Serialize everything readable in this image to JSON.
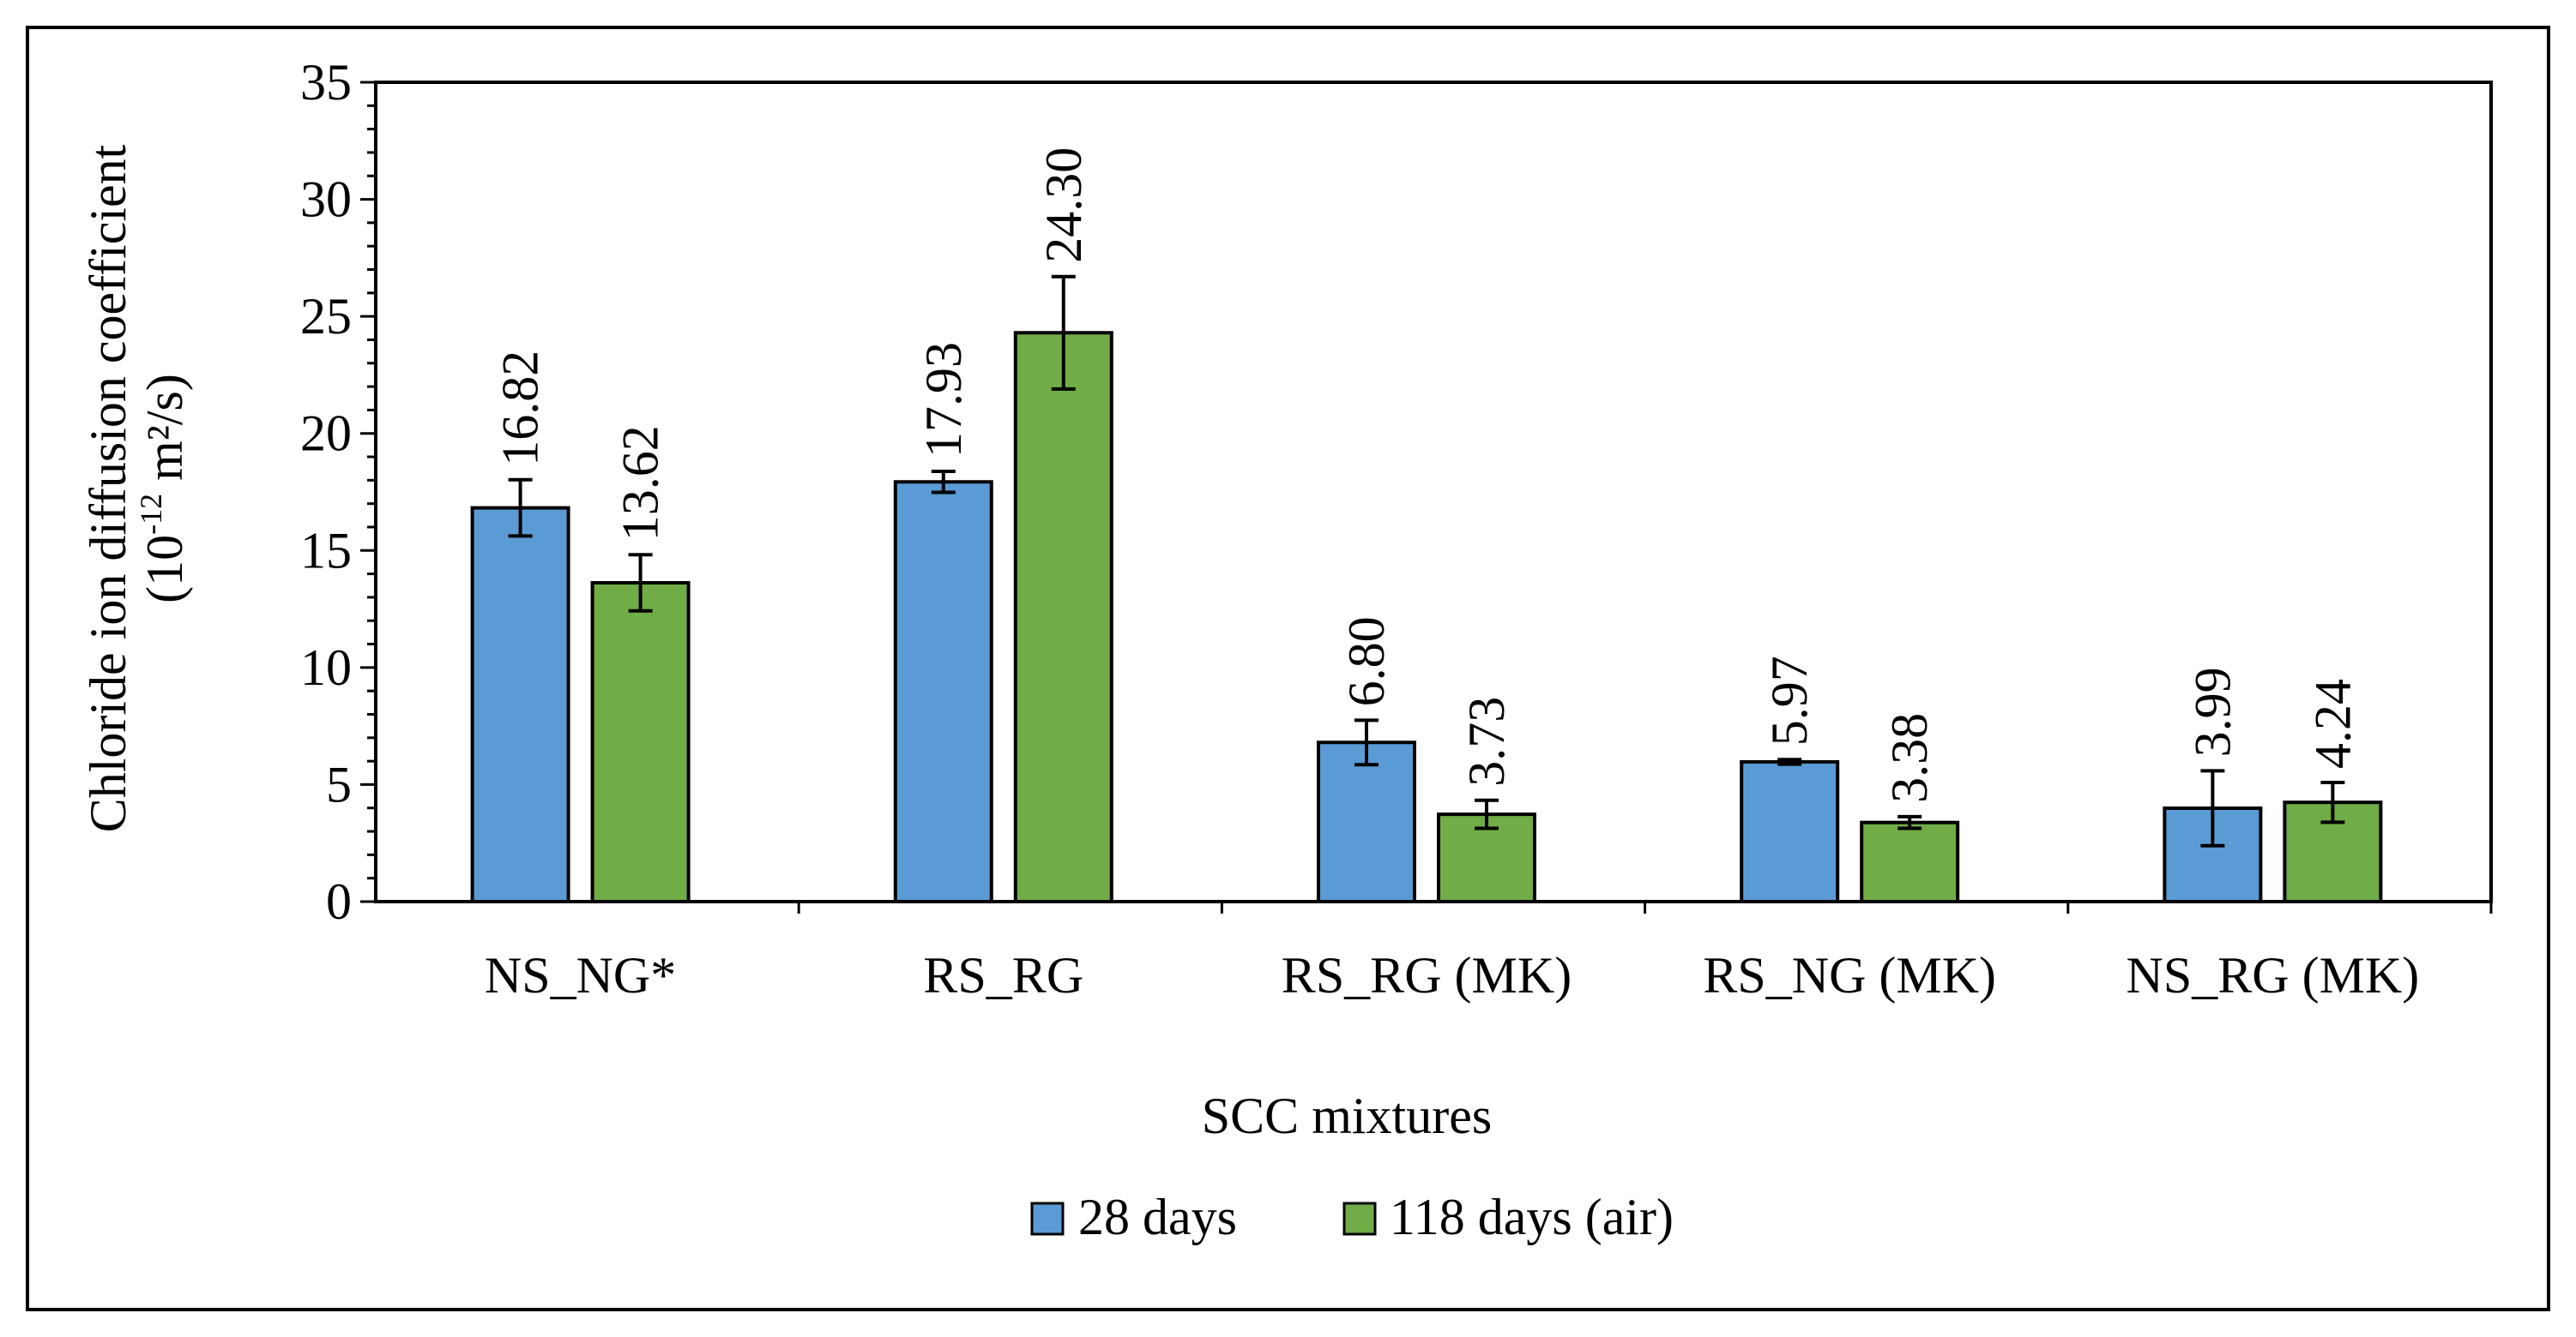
{
  "chart_data": {
    "type": "bar",
    "title": "",
    "xlabel": "SCC mixtures",
    "ylabel": "Chloride ion diffusion coefficient",
    "ylabel_line2_prefix": "(10",
    "ylabel_line2_exp": "-12",
    "ylabel_line2_unit": " m²/s)",
    "ylim": [
      0,
      35
    ],
    "y_ticks": [
      "0",
      "5",
      "10",
      "15",
      "20",
      "25",
      "30",
      "35"
    ],
    "grid": false,
    "legend_position": "bottom",
    "categories": [
      "NS_NG*",
      "RS_RG",
      "RS_RG (MK)",
      "RS_NG (MK)",
      "NS_RG (MK)"
    ],
    "series": [
      {
        "name": "28 days",
        "color": "#5B9BD5",
        "values": [
          16.82,
          17.93,
          6.8,
          5.97,
          3.99
        ],
        "labels": [
          "16.82",
          "17.93",
          "6.80",
          "5.97",
          "3.99"
        ],
        "error": [
          1.2,
          0.45,
          0.95,
          0.1,
          1.6
        ]
      },
      {
        "name": "118 days (air)",
        "color": "#70AD47",
        "values": [
          13.62,
          24.3,
          3.73,
          3.38,
          4.24
        ],
        "labels": [
          "13.62",
          "24.30",
          "3.73",
          "3.38",
          "4.24"
        ],
        "error": [
          1.2,
          2.4,
          0.6,
          0.25,
          0.85
        ]
      }
    ]
  }
}
